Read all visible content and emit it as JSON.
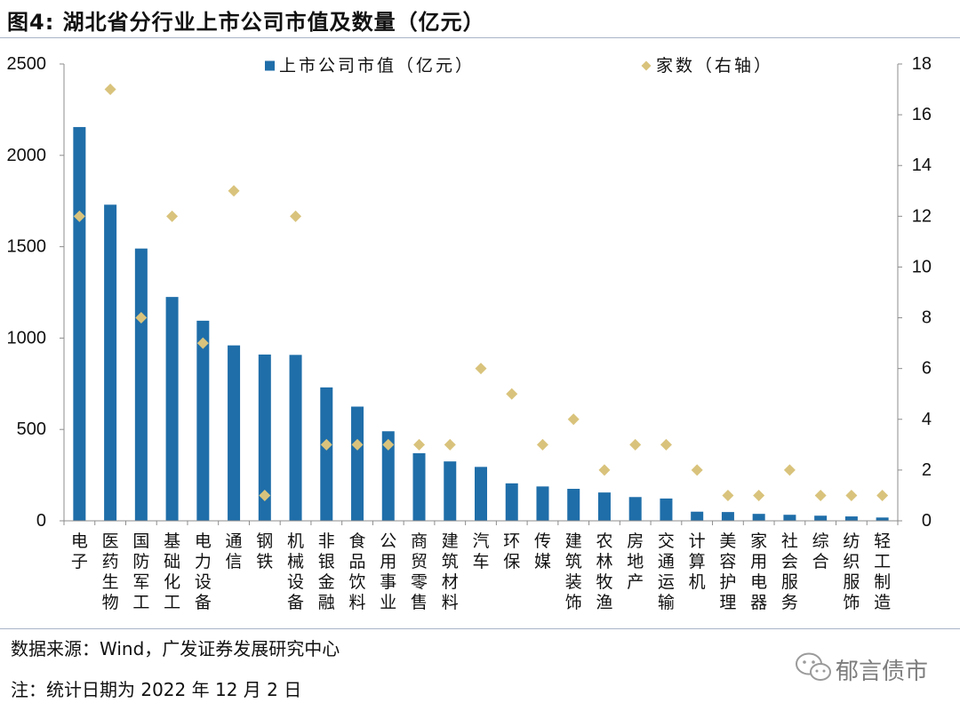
{
  "title": "图4: 湖北省分行业上市公司市值及数量（亿元）",
  "source": "数据来源：Wind，广发证券发展研究中心",
  "note": "注：统计日期为 2022 年 12 月 2 日",
  "watermark": "郁言债市",
  "colors": {
    "bar": "#1f6ea9",
    "marker": "#d9c37c",
    "axis": "#8c8c8c",
    "watermark": "#9a9a9a"
  },
  "chart_data": {
    "type": "bar",
    "title": "湖北省分行业上市公司市值及数量（亿元）",
    "xlabel": "",
    "ylabel": "",
    "grid": false,
    "legend_position": "top",
    "categories": [
      "电子",
      "医药生物",
      "国防军工",
      "基础化工",
      "电力设备",
      "通信",
      "钢铁",
      "机械设备",
      "非银金融",
      "食品饮料",
      "公用事业",
      "商贸零售",
      "建筑材料",
      "汽车",
      "环保",
      "传媒",
      "建筑装饰",
      "农林牧渔",
      "房地产",
      "交通运输",
      "计算机",
      "美容护理",
      "家用电器",
      "社会服务",
      "综合",
      "纺织服饰",
      "轻工制造"
    ],
    "series": [
      {
        "name": "上市公司市值（亿元）",
        "type": "bar",
        "axis": "left",
        "values": [
          2155,
          1730,
          1490,
          1225,
          1095,
          960,
          910,
          908,
          730,
          625,
          490,
          370,
          325,
          295,
          205,
          188,
          175,
          155,
          130,
          122,
          50,
          48,
          38,
          33,
          28,
          24,
          18
        ]
      },
      {
        "name": "家数（右轴）",
        "type": "scatter",
        "marker": "diamond",
        "axis": "right",
        "values": [
          12,
          17,
          8,
          12,
          7,
          13,
          1,
          12,
          3,
          3,
          3,
          3,
          3,
          6,
          5,
          3,
          4,
          2,
          3,
          3,
          2,
          1,
          1,
          2,
          1,
          1,
          1
        ]
      }
    ],
    "y_left": {
      "min": 0,
      "max": 2500,
      "ticks": [
        0,
        500,
        1000,
        1500,
        2000,
        2500
      ]
    },
    "y_right": {
      "min": 0,
      "max": 18,
      "ticks": [
        0,
        2,
        4,
        6,
        8,
        10,
        12,
        14,
        16,
        18
      ]
    }
  }
}
